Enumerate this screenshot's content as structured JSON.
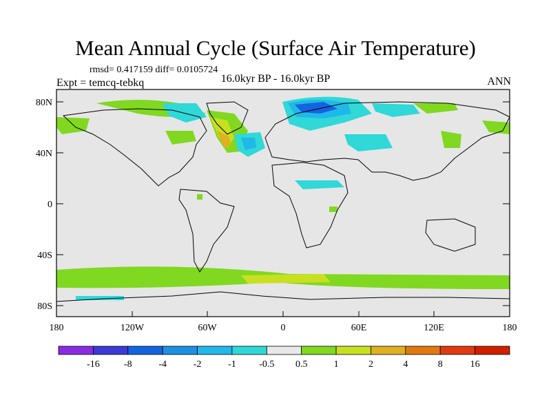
{
  "title": "Mean Annual Cycle (Surface Air Temperature)",
  "stats_text": "rmsd= 0.417159 diff= 0.0105724",
  "experiment": "Expt = temcq-tebkq",
  "period": "16.0kyr BP - 16.0kyr BP",
  "season": "ANN",
  "lat_labels": [
    "80N",
    "40N",
    "0",
    "40S",
    "80S"
  ],
  "lon_labels": [
    "180",
    "120W",
    "60W",
    "0",
    "60E",
    "120E",
    "180"
  ],
  "colorbar": {
    "labels": [
      "-16",
      "-8",
      "-4",
      "-2",
      "-1",
      "-0.5",
      "0.5",
      "1",
      "2",
      "4",
      "8",
      "16"
    ],
    "colors": [
      "#8a2be2",
      "#3a3ad6",
      "#1464e0",
      "#1e90e0",
      "#20b8e8",
      "#30d8d8",
      "#e8e8e8",
      "#80d820",
      "#c8e020",
      "#e0b020",
      "#e07a10",
      "#e03a10",
      "#d01e00"
    ]
  },
  "colors": {
    "background": "#e6e6e6",
    "land_outline": "#000000"
  }
}
